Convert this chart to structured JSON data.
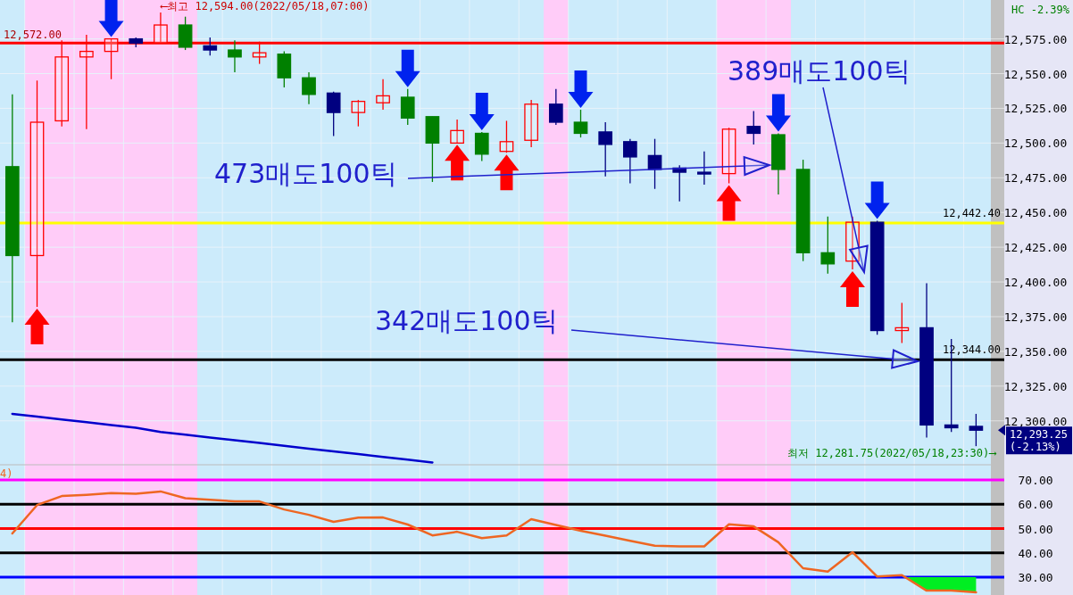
{
  "chart_data": [
    {
      "type": "candlestick",
      "categories": [
        null,
        null,
        null,
        null,
        null,
        null,
        null,
        null,
        null,
        null,
        null,
        null,
        null,
        null,
        null,
        null,
        null,
        null,
        null,
        null,
        null,
        null,
        null,
        null,
        null,
        null,
        null,
        null,
        null,
        null,
        null,
        null,
        null,
        null,
        null,
        null,
        null,
        null,
        null,
        null
      ],
      "ohlc": [
        [
          12483,
          12535,
          12371,
          12419
        ],
        [
          12419,
          12545,
          12382,
          12515
        ],
        [
          12516,
          12574,
          12512,
          12562
        ],
        [
          12562,
          12578,
          12510,
          12566
        ],
        [
          12566,
          12575,
          12546,
          12575
        ],
        [
          12575,
          12576,
          12569,
          12572
        ],
        [
          12572,
          12594,
          12572,
          12585
        ],
        [
          12585,
          12591,
          12567,
          12569
        ],
        [
          12570,
          12576,
          12563,
          12567
        ],
        [
          12567,
          12574,
          12551,
          12562
        ],
        [
          12562,
          12573,
          12557,
          12565
        ],
        [
          12564,
          12566,
          12540,
          12547
        ],
        [
          12547,
          12551,
          12528,
          12535
        ],
        [
          12536,
          12537,
          12505,
          12522
        ],
        [
          12522,
          12531,
          12512,
          12530
        ],
        [
          12529,
          12546,
          12524,
          12534
        ],
        [
          12533,
          12539,
          12513,
          12518
        ],
        [
          12519,
          12519,
          12472,
          12500
        ],
        [
          12500,
          12517,
          12500,
          12509
        ],
        [
          12507,
          12508,
          12487,
          12492
        ],
        [
          12494,
          12516,
          12493,
          12501
        ],
        [
          12502,
          12531,
          12497,
          12528
        ],
        [
          12528,
          12539,
          12513,
          12515
        ],
        [
          12515,
          12524,
          12504,
          12507
        ],
        [
          12508,
          12515,
          12476,
          12499
        ],
        [
          12501,
          12503,
          12471,
          12490
        ],
        [
          12491,
          12503,
          12467,
          12481
        ],
        [
          12482,
          12484,
          12458,
          12479
        ],
        [
          12479,
          12494,
          12470,
          12478
        ],
        [
          12478,
          12511,
          12471,
          12510
        ],
        [
          12512,
          12523,
          12499,
          12507
        ],
        [
          12506,
          12507,
          12463,
          12481
        ],
        [
          12481,
          12488,
          12415,
          12421
        ],
        [
          12421,
          12447,
          12406,
          12413
        ],
        [
          12415,
          12447,
          12409,
          12443
        ],
        [
          12443,
          12444,
          12362,
          12365
        ],
        [
          12365,
          12385,
          12356,
          12367
        ],
        [
          12367,
          12399,
          12288,
          12297
        ],
        [
          12297,
          12359,
          12292,
          12295
        ],
        [
          12296,
          12305,
          12281.75,
          12293.25
        ]
      ],
      "colors": [
        "#008000",
        "#ff0000",
        "#ff0000",
        "#ff0000",
        "#ff0000",
        "#000080",
        "#ff0000",
        "#008000",
        "#000080",
        "#008000",
        "#ff0000",
        "#008000",
        "#008000",
        "#000080",
        "#ff0000",
        "#ff0000",
        "#008000",
        "#008000",
        "#ff0000",
        "#008000",
        "#ff0000",
        "#ff0000",
        "#000080",
        "#008000",
        "#000080",
        "#000080",
        "#000080",
        "#000080",
        "#000080",
        "#ff0000",
        "#000080",
        "#008000",
        "#008000",
        "#008000",
        "#ff0000",
        "#000080",
        "#ff0000",
        "#000080",
        "#000080",
        "#000080"
      ],
      "series": [
        {
          "type": "line",
          "values": [
            12305,
            12303,
            12301,
            12299,
            12297,
            12295,
            12292,
            12290,
            12288,
            12286,
            12284,
            12282,
            12280,
            12278,
            12276,
            12274,
            12272,
            12270,
            null,
            null,
            null,
            null,
            null,
            null,
            null,
            null,
            null,
            null,
            null,
            null,
            null,
            null,
            null,
            null,
            null,
            null,
            null,
            null,
            null,
            null
          ],
          "color": "#0000cc"
        }
      ],
      "ylim": [
        12269,
        12603
      ],
      "yticks": [
        {
          "value": 12300,
          "label": "12,300.00"
        },
        {
          "value": 12325,
          "label": "12,325.00"
        },
        {
          "value": 12350,
          "label": "12,350.00"
        },
        {
          "value": 12375,
          "label": "12,375.00"
        },
        {
          "value": 12400,
          "label": "12,400.00"
        },
        {
          "value": 12425,
          "label": "12,425.00"
        },
        {
          "value": 12450,
          "label": "12,450.00"
        },
        {
          "value": 12475,
          "label": "12,475.00"
        },
        {
          "value": 12500,
          "label": "12,500.00"
        },
        {
          "value": 12525,
          "label": "12,525.00"
        },
        {
          "value": 12550,
          "label": "12,550.00"
        },
        {
          "value": 12575,
          "label": "12,575.00"
        }
      ],
      "ref_lines": [
        {
          "axis": "y",
          "value": 12572,
          "label": "12,572.00",
          "color": "#ff0000"
        },
        {
          "axis": "y",
          "value": 12442.4,
          "label": "12,442.40",
          "color": "#ffff00"
        },
        {
          "axis": "y",
          "value": 12344,
          "label": "12,344.00",
          "color": "#000000"
        }
      ],
      "annotations": [
        "⟵최고 12,594.00(2022/05/18,07:00)",
        "최저 12,281.75(2022/05/18,23:30)⟶",
        "473매도100틱",
        "389매도100틱",
        "342매도100틱",
        "12,293.25 (-2.13%)",
        "HC -2.39%"
      ],
      "grid": "y",
      "tick_labels": "y"
    },
    {
      "type": "line",
      "categories": [
        null,
        null,
        null,
        null,
        null,
        null,
        null,
        null,
        null,
        null,
        null,
        null,
        null,
        null,
        null,
        null,
        null,
        null,
        null,
        null,
        null,
        null,
        null,
        null,
        null,
        null,
        null,
        null,
        null,
        null,
        null,
        null,
        null,
        null,
        null,
        null,
        null,
        null,
        null,
        null
      ],
      "series": [
        {
          "values": [
            48.0,
            59.7,
            63.4,
            63.9,
            64.6,
            64.3,
            65.3,
            62.5,
            61.9,
            61.2,
            61.2,
            57.9,
            55.7,
            52.8,
            54.5,
            54.6,
            51.7,
            47.2,
            48.7,
            46.1,
            47.2,
            53.9,
            51.5,
            49.1,
            47.1,
            45.0,
            43.0,
            42.7,
            42.7,
            51.8,
            50.9,
            44.4,
            33.7,
            32.3,
            40.3,
            30.3,
            30.9,
            24.5,
            24.5,
            23.8
          ],
          "color": "#ee6622"
        }
      ],
      "ylim": [
        22.7,
        75.9
      ],
      "yticks": [
        {
          "value": 30,
          "label": "30.00"
        },
        {
          "value": 40,
          "label": "40.00"
        },
        {
          "value": 50,
          "label": "50.00"
        },
        {
          "value": 60,
          "label": "60.00"
        },
        {
          "value": 70,
          "label": "70.00"
        }
      ],
      "ref_lines": [
        {
          "axis": "y",
          "value": 70,
          "color": "#ff00ff"
        },
        {
          "axis": "y",
          "value": 60,
          "color": "#000000"
        },
        {
          "axis": "y",
          "value": 50,
          "color": "#ff0000"
        },
        {
          "axis": "y",
          "value": 40,
          "color": "#000000"
        },
        {
          "axis": "y",
          "value": 30,
          "color": "#0000ff"
        }
      ],
      "annotations": [
        "4)"
      ],
      "tick_labels": "y"
    }
  ]
}
